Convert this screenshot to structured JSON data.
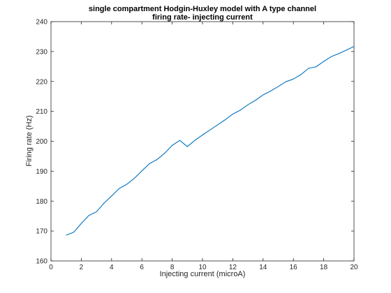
{
  "chart_data": {
    "type": "line",
    "title": "single compartment Hodgin-Huxley model with A type channel",
    "subtitle": "firing rate- injecting current",
    "xlabel": "Injecting current (microA)",
    "ylabel": "Firing rate (Hz)",
    "xlim": [
      0,
      20
    ],
    "ylim": [
      160,
      240
    ],
    "xticks": [
      0,
      2,
      4,
      6,
      8,
      10,
      12,
      14,
      16,
      18,
      20
    ],
    "yticks": [
      160,
      170,
      180,
      190,
      200,
      210,
      220,
      230,
      240
    ],
    "grid": false,
    "line_color": "#0072bd",
    "series": [
      {
        "x": [
          1,
          1.5,
          2,
          2.5,
          3,
          3.5,
          4,
          4.5,
          5,
          5.5,
          6,
          6.5,
          7,
          7.5,
          8,
          8.5,
          9,
          9.5,
          10,
          10.5,
          11,
          11.5,
          12,
          12.5,
          13,
          13.5,
          14,
          14.5,
          15,
          15.5,
          16,
          16.5,
          17,
          17.5,
          18,
          18.5,
          19,
          19.5,
          20
        ],
        "values": [
          168.6,
          169.6,
          172.5,
          175.2,
          176.4,
          179.3,
          181.7,
          184.2,
          185.6,
          187.6,
          190.1,
          192.5,
          193.9,
          196.0,
          198.6,
          200.3,
          198.2,
          200.3,
          202.1,
          203.8,
          205.5,
          207.2,
          209.1,
          210.4,
          212.2,
          213.7,
          215.5,
          216.8,
          218.3,
          219.9,
          220.8,
          222.3,
          224.4,
          224.9,
          226.7,
          228.3,
          229.3,
          230.5,
          231.7
        ]
      }
    ]
  }
}
